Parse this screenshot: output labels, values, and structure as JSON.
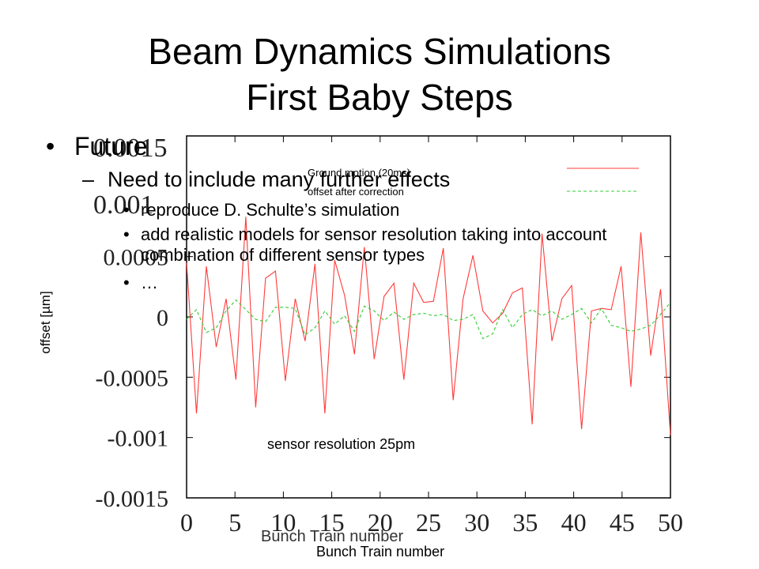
{
  "slide": {
    "title_line1": "Beam Dynamics Simulations",
    "title_line2": "First Baby Steps",
    "bullet_future": "Future",
    "bullet_need": "Need to include many further effects",
    "bullet_reproduce": "reproduce D. Schulte’s simulation",
    "bullet_realistic_1": "add realistic models for sensor resolution taking into account",
    "bullet_realistic_2": "combination of different sensor types",
    "bullet_ellipsis": "…",
    "bullet_dot": "•",
    "bullet_dash": "–",
    "ylabel": "offset [µm]",
    "xlabel_front": "Bunch Train number",
    "xlabel_behind": "Bunch Train number",
    "annotation": "sensor resolution 25pm",
    "ghost_tick": "0.0015",
    "ghost_tick_2": "0.001"
  },
  "chart_data": {
    "type": "line",
    "xlabel": "Bunch Train number",
    "ylabel": "offset [µm]",
    "xlim": [
      0,
      50
    ],
    "ylim": [
      -0.0015,
      0.0015
    ],
    "x_ticks": [
      "0",
      "5",
      "10",
      "15",
      "20",
      "25",
      "30",
      "35",
      "40",
      "45",
      "50"
    ],
    "y_ticks": [
      "0.0005",
      "0",
      "-0.0005",
      "-0.001",
      "-0.0015"
    ],
    "grid": false,
    "legend_position": "top-right",
    "series": [
      {
        "name": "Ground motion (20ms)",
        "color": "#ff3b3b",
        "values": [
          0.00045,
          -0.0008,
          0.00042,
          -0.00025,
          0.00015,
          -0.00052,
          0.00083,
          -0.00075,
          0.00032,
          0.00038,
          -0.00053,
          0.00015,
          -0.0002,
          0.00044,
          -0.0008,
          0.00047,
          0.00018,
          -0.00031,
          0.00058,
          -0.00035,
          0.00017,
          0.00028,
          -0.00052,
          0.00028,
          0.00012,
          0.00013,
          0.00057,
          -0.00069,
          0.00015,
          0.00051,
          5e-05,
          -5e-05,
          3e-05,
          0.0002,
          0.00024,
          -0.00089,
          0.00069,
          -0.0002,
          0.00015,
          0.00026,
          -0.00093,
          5e-05,
          7e-05,
          6e-05,
          0.00042,
          -0.00058,
          0.0007,
          -0.00032,
          0.00023,
          -0.00098
        ]
      },
      {
        "name": "offset after correction",
        "color": "#33cc33",
        "values": [
          -2e-05,
          6e-05,
          -0.00013,
          -9e-05,
          5e-05,
          0.00014,
          6e-05,
          -2e-05,
          -4e-05,
          8e-05,
          8e-05,
          7e-05,
          -0.00015,
          -9e-05,
          5e-05,
          -6e-05,
          1e-05,
          -0.00012,
          9e-05,
          5e-05,
          -3e-05,
          4e-05,
          -2e-05,
          2e-05,
          3e-05,
          1e-05,
          2e-05,
          -3e-05,
          -2e-05,
          2e-05,
          -0.00018,
          -0.00014,
          6e-05,
          -9e-05,
          2e-05,
          6e-05,
          1e-05,
          5e-05,
          -2e-05,
          2e-05,
          7e-05,
          -5e-05,
          7e-05,
          -7e-05,
          -9e-05,
          -0.00012,
          -0.0001,
          -7e-05,
          2e-05,
          0.00012
        ]
      }
    ]
  }
}
